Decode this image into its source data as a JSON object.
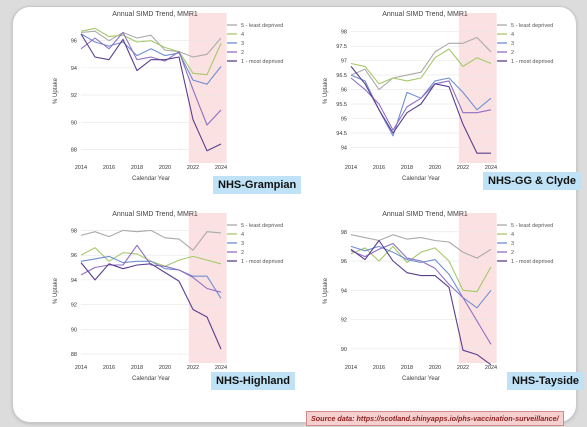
{
  "source_note": "Source data: https://scotland.shinyapps.io/phs-vaccination-surveillance/",
  "colors": {
    "shade": "#fbe1e1",
    "grid": "#e6e6e6",
    "series": [
      "#aaaaaa",
      "#a6c96a",
      "#6f8fd3",
      "#8f6fc4",
      "#5a3f8f"
    ]
  },
  "chart_data": [
    {
      "type": "line",
      "title": "Annual SIMD Trend, MMR1",
      "xlabel": "Calendar Year",
      "ylabel": "% Uptake",
      "region_label": "NHS-Grampian",
      "x": [
        2014,
        2015,
        2016,
        2017,
        2018,
        2019,
        2020,
        2021,
        2022,
        2023,
        2024
      ],
      "xticks": [
        2014,
        2016,
        2018,
        2020,
        2022,
        2024
      ],
      "ylim": [
        87.3,
        97.3
      ],
      "yticks": [
        88,
        90,
        92,
        94,
        96
      ],
      "highlight": [
        2021.7,
        2024.4
      ],
      "legend_position": "top-right",
      "series": [
        {
          "name": "5 - least deprived",
          "values": [
            96.6,
            96.7,
            96.0,
            96.6,
            96.2,
            96.4,
            95.3,
            95.2,
            94.8,
            95.0,
            96.2
          ]
        },
        {
          "name": "4",
          "values": [
            96.7,
            96.9,
            96.3,
            96.4,
            95.9,
            96.0,
            95.5,
            95.2,
            93.6,
            93.5,
            95.8
          ]
        },
        {
          "name": "3",
          "values": [
            96.5,
            95.9,
            95.6,
            95.9,
            94.9,
            95.4,
            94.9,
            95.1,
            93.1,
            92.8,
            94.1
          ]
        },
        {
          "name": "2",
          "values": [
            95.4,
            96.2,
            95.4,
            96.6,
            94.6,
            94.8,
            94.5,
            95.2,
            92.4,
            89.8,
            90.9
          ]
        },
        {
          "name": "1 - most deprived",
          "values": [
            96.5,
            94.8,
            94.6,
            96.1,
            93.8,
            94.6,
            94.6,
            94.8,
            90.2,
            87.9,
            88.4
          ]
        }
      ]
    },
    {
      "type": "line",
      "title": "Annual SIMD Trend, MMR1",
      "xlabel": "Calendar Year",
      "ylabel": "% Uptake",
      "region_label": "NHS-GG & Clyde",
      "x": [
        2014,
        2015,
        2016,
        2017,
        2018,
        2019,
        2020,
        2021,
        2022,
        2023,
        2024
      ],
      "xticks": [
        2014,
        2016,
        2018,
        2020,
        2022,
        2024
      ],
      "ylim": [
        93.6,
        98.3
      ],
      "yticks": [
        94,
        94.5,
        95,
        95.5,
        96,
        96.5,
        97,
        97.5,
        98
      ],
      "highlight": [
        2021.7,
        2024.4
      ],
      "legend_position": "top-right",
      "series": [
        {
          "name": "5 - least deprived",
          "values": [
            96.5,
            96.7,
            96.0,
            96.4,
            96.5,
            96.6,
            97.3,
            97.6,
            97.6,
            97.8,
            97.3
          ]
        },
        {
          "name": "4",
          "values": [
            96.9,
            96.8,
            96.2,
            96.4,
            96.3,
            96.4,
            97.1,
            97.4,
            96.8,
            97.1,
            96.9
          ]
        },
        {
          "name": "3",
          "values": [
            96.5,
            96.3,
            95.3,
            94.4,
            95.9,
            95.7,
            96.3,
            96.4,
            95.9,
            95.3,
            95.7
          ]
        },
        {
          "name": "2",
          "values": [
            96.4,
            96.0,
            95.5,
            94.6,
            95.4,
            95.7,
            96.2,
            96.3,
            95.2,
            95.2,
            95.3
          ]
        },
        {
          "name": "1 - most deprived",
          "values": [
            96.8,
            96.2,
            95.3,
            94.5,
            95.2,
            95.5,
            96.2,
            96.1,
            94.8,
            93.8,
            93.8
          ]
        }
      ]
    },
    {
      "type": "line",
      "title": "Annual SIMD Trend, MMR1",
      "xlabel": "Calendar Year",
      "ylabel": "% Uptake",
      "region_label": "NHS-Highland",
      "x": [
        2014,
        2015,
        2016,
        2017,
        2018,
        2019,
        2020,
        2021,
        2022,
        2023,
        2024
      ],
      "xticks": [
        2014,
        2016,
        2018,
        2020,
        2022,
        2024
      ],
      "ylim": [
        87.6,
        98.6
      ],
      "yticks": [
        88,
        90,
        92,
        94,
        96,
        98
      ],
      "highlight": [
        2021.7,
        2024.4
      ],
      "legend_position": "top-right",
      "series": [
        {
          "name": "5 - least deprived",
          "values": [
            97.6,
            97.9,
            97.5,
            98.0,
            97.9,
            98.0,
            97.4,
            97.3,
            96.4,
            97.9,
            97.8
          ]
        },
        {
          "name": "4",
          "values": [
            96.0,
            96.6,
            95.5,
            96.2,
            96.1,
            95.5,
            95.1,
            95.6,
            95.9,
            95.6,
            95.3
          ]
        },
        {
          "name": "3",
          "values": [
            95.5,
            95.7,
            95.9,
            95.4,
            95.5,
            95.5,
            94.9,
            94.8,
            94.3,
            94.3,
            92.5
          ]
        },
        {
          "name": "2",
          "values": [
            94.4,
            95.0,
            95.2,
            95.2,
            96.8,
            95.2,
            95.1,
            94.8,
            94.2,
            93.3,
            93.0
          ]
        },
        {
          "name": "1 - most deprived",
          "values": [
            95.4,
            94.0,
            95.3,
            94.9,
            95.2,
            95.3,
            94.6,
            93.9,
            91.6,
            91.0,
            88.4
          ]
        }
      ]
    },
    {
      "type": "line",
      "title": "Annual SIMD Trend, MMR1",
      "xlabel": "Calendar Year",
      "ylabel": "% Uptake",
      "region_label": "NHS-Tayside",
      "x": [
        2014,
        2015,
        2016,
        2017,
        2018,
        2019,
        2020,
        2021,
        2022,
        2023,
        2024
      ],
      "xticks": [
        2014,
        2016,
        2018,
        2020,
        2022,
        2024
      ],
      "ylim": [
        89.3,
        98.6
      ],
      "yticks": [
        90,
        92,
        94,
        96,
        98
      ],
      "highlight": [
        2021.7,
        2024.4
      ],
      "legend_position": "top-right",
      "series": [
        {
          "name": "5 - least deprived",
          "values": [
            97.8,
            97.6,
            97.4,
            97.8,
            97.5,
            97.6,
            97.4,
            97.3,
            96.6,
            96.2,
            96.8
          ]
        },
        {
          "name": "4",
          "values": [
            96.5,
            96.9,
            96.0,
            97.0,
            95.9,
            96.6,
            96.9,
            96.0,
            94.0,
            93.9,
            95.6
          ]
        },
        {
          "name": "3",
          "values": [
            97.0,
            96.7,
            97.0,
            96.6,
            96.1,
            95.9,
            96.1,
            95.1,
            93.5,
            92.8,
            94.0
          ]
        },
        {
          "name": "2",
          "values": [
            96.7,
            96.3,
            96.8,
            97.2,
            96.2,
            96.0,
            95.5,
            94.4,
            93.5,
            91.9,
            90.3
          ]
        },
        {
          "name": "1 - most deprived",
          "values": [
            96.8,
            96.1,
            97.4,
            96.0,
            95.2,
            95.0,
            95.0,
            94.2,
            89.9,
            89.6,
            88.9
          ]
        }
      ]
    }
  ]
}
